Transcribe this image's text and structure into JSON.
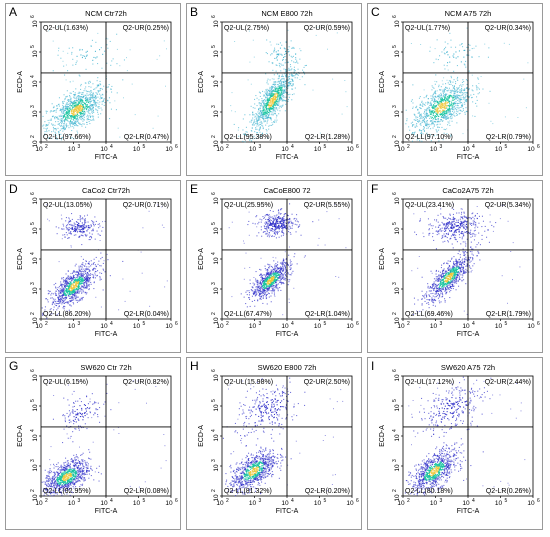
{
  "colors": {
    "ncm_events": "#3fb2cf",
    "caco2_events": "#2b2bc8",
    "sw620_events": "#2b2bc8",
    "dense_core": "#18c4a0",
    "gate_lines": "#000000"
  },
  "chart_data": [
    {
      "letter": "A",
      "type": "scatter",
      "title": "NCM Ctr72h",
      "xlabel": "FITC-A",
      "ylabel": "ECD-A",
      "scale": "log",
      "xlim": [
        100,
        1000000
      ],
      "ylim": [
        100,
        1000000
      ],
      "x_ticks": [
        "10",
        "10",
        "10",
        "10",
        "10"
      ],
      "x_tick_exp": [
        "2",
        "3",
        "4",
        "5",
        "6"
      ],
      "y_ticks": [
        "10",
        "10",
        "10",
        "10",
        "10"
      ],
      "y_tick_exp": [
        "2",
        "3",
        "4",
        "5",
        "6"
      ],
      "gate_x": 10000,
      "gate_y": 20000,
      "palette": "ncm",
      "quadrants": {
        "ul": "Q2-UL(1.63%)",
        "ur": "Q2-UR(0.25%)",
        "ll": "Q2-LL(97.66%)",
        "lr": "Q2-LR(0.47%)"
      },
      "populations": [
        {
          "cx": 1200,
          "cy": 1200,
          "spread_x": 0.45,
          "spread_y": 0.4,
          "count": 900,
          "tilt": 0.6
        },
        {
          "cx": 3000,
          "cy": 80000,
          "spread_x": 0.5,
          "spread_y": 0.3,
          "count": 60,
          "tilt": 0.2
        }
      ]
    },
    {
      "letter": "B",
      "type": "scatter",
      "title": "NCM E800 72h",
      "xlabel": "FITC-A",
      "ylabel": "ECD-A",
      "scale": "log",
      "xlim": [
        100,
        1000000
      ],
      "ylim": [
        100,
        1000000
      ],
      "x_ticks": [
        "10",
        "10",
        "10",
        "10",
        "10"
      ],
      "x_tick_exp": [
        "2",
        "3",
        "4",
        "5",
        "6"
      ],
      "y_ticks": [
        "10",
        "10",
        "10",
        "10",
        "10"
      ],
      "y_tick_exp": [
        "2",
        "3",
        "4",
        "5",
        "6"
      ],
      "gate_x": 10000,
      "gate_y": 20000,
      "palette": "ncm",
      "quadrants": {
        "ul": "Q2-UL(2.75%)",
        "ur": "Q2-UR(0.59%)",
        "ll": "Q2-LL(95.38%)",
        "lr": "Q2-LR(1.28%)"
      },
      "populations": [
        {
          "cx": 3500,
          "cy": 2500,
          "spread_x": 0.35,
          "spread_y": 0.55,
          "count": 900,
          "tilt": 0.8
        },
        {
          "cx": 6000,
          "cy": 90000,
          "spread_x": 0.3,
          "spread_y": 0.25,
          "count": 70,
          "tilt": 0.2
        }
      ]
    },
    {
      "letter": "C",
      "type": "scatter",
      "title": "NCM A75 72h",
      "xlabel": "FITC-A",
      "ylabel": "ECD-A",
      "scale": "log",
      "xlim": [
        100,
        1000000
      ],
      "ylim": [
        100,
        1000000
      ],
      "x_ticks": [
        "10",
        "10",
        "10",
        "10",
        "10"
      ],
      "x_tick_exp": [
        "2",
        "3",
        "4",
        "5",
        "6"
      ],
      "y_ticks": [
        "10",
        "10",
        "10",
        "10",
        "10"
      ],
      "y_tick_exp": [
        "2",
        "3",
        "4",
        "5",
        "6"
      ],
      "gate_x": 10000,
      "gate_y": 20000,
      "palette": "ncm",
      "quadrants": {
        "ul": "Q2-UL(1.77%)",
        "ur": "Q2-UR(0.34%)",
        "ll": "Q2-LL(97.10%)",
        "lr": "Q2-LR(0.79%)"
      },
      "populations": [
        {
          "cx": 1500,
          "cy": 1500,
          "spread_x": 0.45,
          "spread_y": 0.45,
          "count": 900,
          "tilt": 0.6
        },
        {
          "cx": 4000,
          "cy": 80000,
          "spread_x": 0.45,
          "spread_y": 0.3,
          "count": 60,
          "tilt": 0.2
        }
      ]
    },
    {
      "letter": "D",
      "type": "scatter",
      "title": "CaCo2 Ctr72h",
      "xlabel": "FITC-A",
      "ylabel": "ECD-A",
      "scale": "log",
      "xlim": [
        100,
        1000000
      ],
      "ylim": [
        100,
        1000000
      ],
      "x_ticks": [
        "10",
        "10",
        "10",
        "10",
        "10"
      ],
      "x_tick_exp": [
        "2",
        "3",
        "4",
        "5",
        "6"
      ],
      "y_ticks": [
        "10",
        "10",
        "10",
        "10",
        "10"
      ],
      "y_tick_exp": [
        "2",
        "3",
        "4",
        "5",
        "6"
      ],
      "gate_x": 10000,
      "gate_y": 20000,
      "palette": "caco2",
      "quadrants": {
        "ul": "Q2-UL(13.05%)",
        "ur": "Q2-UR(0.71%)",
        "ll": "Q2-LL(86.20%)",
        "lr": "Q2-LR(0.04%)"
      },
      "populations": [
        {
          "cx": 1000,
          "cy": 1300,
          "spread_x": 0.35,
          "spread_y": 0.35,
          "count": 850,
          "tilt": 0.7
        },
        {
          "cx": 1500,
          "cy": 120000,
          "spread_x": 0.3,
          "spread_y": 0.2,
          "count": 200,
          "tilt": 0.1
        }
      ]
    },
    {
      "letter": "E",
      "type": "scatter",
      "title": "CaCoE800 72",
      "xlabel": "FITC-A",
      "ylabel": "ECD-A",
      "scale": "log",
      "xlim": [
        100,
        1000000
      ],
      "ylim": [
        100,
        1000000
      ],
      "x_ticks": [
        "10",
        "10",
        "10",
        "10",
        "10"
      ],
      "x_tick_exp": [
        "2",
        "3",
        "4",
        "5",
        "6"
      ],
      "y_ticks": [
        "10",
        "10",
        "10",
        "10",
        "10"
      ],
      "y_tick_exp": [
        "2",
        "3",
        "4",
        "5",
        "6"
      ],
      "gate_x": 10000,
      "gate_y": 20000,
      "palette": "caco2",
      "quadrants": {
        "ul": "Q2-UL(25.95%)",
        "ur": "Q2-UR(5.55%)",
        "ll": "Q2-LL(67.47%)",
        "lr": "Q2-LR(1.04%)"
      },
      "populations": [
        {
          "cx": 3000,
          "cy": 2000,
          "spread_x": 0.3,
          "spread_y": 0.3,
          "count": 750,
          "tilt": 0.7
        },
        {
          "cx": 5000,
          "cy": 150000,
          "spread_x": 0.3,
          "spread_y": 0.2,
          "count": 330,
          "tilt": 0.1
        }
      ]
    },
    {
      "letter": "F",
      "type": "scatter",
      "title": "CaCo2A75 72h",
      "xlabel": "FITC-A",
      "ylabel": "ECD-A",
      "scale": "log",
      "xlim": [
        100,
        1000000
      ],
      "ylim": [
        100,
        1000000
      ],
      "x_ticks": [
        "10",
        "10",
        "10",
        "10",
        "10"
      ],
      "x_tick_exp": [
        "2",
        "3",
        "4",
        "5",
        "6"
      ],
      "y_ticks": [
        "10",
        "10",
        "10",
        "10",
        "10"
      ],
      "y_tick_exp": [
        "2",
        "3",
        "4",
        "5",
        "6"
      ],
      "gate_x": 10000,
      "gate_y": 20000,
      "palette": "caco2",
      "quadrants": {
        "ul": "Q2-UL(23.41%)",
        "ur": "Q2-UR(5.34%)",
        "ll": "Q2-LL(69.46%)",
        "lr": "Q2-LR(1.79%)"
      },
      "populations": [
        {
          "cx": 2500,
          "cy": 2500,
          "spread_x": 0.35,
          "spread_y": 0.4,
          "count": 750,
          "tilt": 0.8
        },
        {
          "cx": 4000,
          "cy": 120000,
          "spread_x": 0.45,
          "spread_y": 0.25,
          "count": 320,
          "tilt": 0.1
        }
      ]
    },
    {
      "letter": "G",
      "type": "scatter",
      "title": "SW620 Ctr 72h",
      "xlabel": "FITC-A",
      "ylabel": "ECD-A",
      "scale": "log",
      "xlim": [
        100,
        1000000
      ],
      "ylim": [
        100,
        1000000
      ],
      "x_ticks": [
        "10",
        "10",
        "10",
        "10",
        "10"
      ],
      "x_tick_exp": [
        "2",
        "3",
        "4",
        "5",
        "6"
      ],
      "y_ticks": [
        "10",
        "10",
        "10",
        "10",
        "10"
      ],
      "y_tick_exp": [
        "2",
        "3",
        "4",
        "5",
        "6"
      ],
      "gate_x": 10000,
      "gate_y": 20000,
      "palette": "sw620",
      "quadrants": {
        "ul": "Q2-UL(6.15%)",
        "ur": "Q2-UR(0.82%)",
        "ll": "Q2-LL(92.95%)",
        "lr": "Q2-LR(0.08%)"
      },
      "populations": [
        {
          "cx": 600,
          "cy": 450,
          "spread_x": 0.35,
          "spread_y": 0.3,
          "count": 850,
          "tilt": 0.5
        },
        {
          "cx": 1500,
          "cy": 60000,
          "spread_x": 0.35,
          "spread_y": 0.35,
          "count": 120,
          "tilt": 0.4
        }
      ]
    },
    {
      "letter": "H",
      "type": "scatter",
      "title": "SW620 E800 72h",
      "xlabel": "FITC-A",
      "ylabel": "ECD-A",
      "scale": "log",
      "xlim": [
        100,
        1000000
      ],
      "ylim": [
        100,
        1000000
      ],
      "x_ticks": [
        "10",
        "10",
        "10",
        "10",
        "10"
      ],
      "x_tick_exp": [
        "2",
        "3",
        "4",
        "5",
        "6"
      ],
      "y_ticks": [
        "10",
        "10",
        "10",
        "10",
        "10"
      ],
      "y_tick_exp": [
        "2",
        "3",
        "4",
        "5",
        "6"
      ],
      "gate_x": 10000,
      "gate_y": 20000,
      "palette": "sw620",
      "quadrants": {
        "ul": "Q2-UL(15.98%)",
        "ur": "Q2-UR(2.50%)",
        "ll": "Q2-LL(81.32%)",
        "lr": "Q2-LR(0.20%)"
      },
      "populations": [
        {
          "cx": 900,
          "cy": 700,
          "spread_x": 0.35,
          "spread_y": 0.35,
          "count": 800,
          "tilt": 0.6
        },
        {
          "cx": 2500,
          "cy": 80000,
          "spread_x": 0.5,
          "spread_y": 0.45,
          "count": 250,
          "tilt": 0.4
        }
      ]
    },
    {
      "letter": "I",
      "type": "scatter",
      "title": "SW620 A75 72h",
      "xlabel": "FITC-A",
      "ylabel": "ECD-A",
      "scale": "log",
      "xlim": [
        100,
        1000000
      ],
      "ylim": [
        100,
        1000000
      ],
      "x_ticks": [
        "10",
        "10",
        "10",
        "10",
        "10"
      ],
      "x_tick_exp": [
        "2",
        "3",
        "4",
        "5",
        "6"
      ],
      "y_ticks": [
        "10",
        "10",
        "10",
        "10",
        "10"
      ],
      "y_tick_exp": [
        "2",
        "3",
        "4",
        "5",
        "6"
      ],
      "gate_x": 10000,
      "gate_y": 20000,
      "palette": "sw620",
      "quadrants": {
        "ul": "Q2-UL(17.12%)",
        "ur": "Q2-UR(2.44%)",
        "ll": "Q2-LL(80.18%)",
        "lr": "Q2-LR(0.26%)"
      },
      "populations": [
        {
          "cx": 900,
          "cy": 700,
          "spread_x": 0.35,
          "spread_y": 0.35,
          "count": 800,
          "tilt": 0.6
        },
        {
          "cx": 3000,
          "cy": 90000,
          "spread_x": 0.5,
          "spread_y": 0.45,
          "count": 260,
          "tilt": 0.4
        }
      ]
    }
  ]
}
